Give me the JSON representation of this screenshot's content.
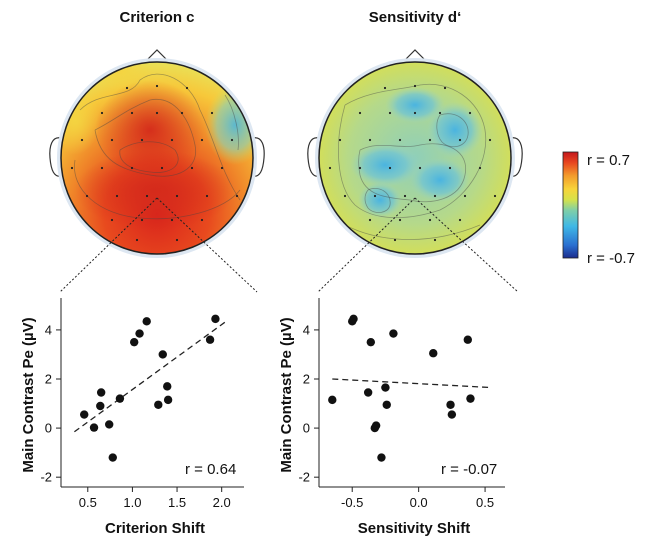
{
  "chart_data": [
    {
      "type": "heatmap",
      "title": "Criterion c",
      "description_values": "scalp topography of correlation r"
    },
    {
      "type": "heatmap",
      "title": "Sensitivity d‘"
    },
    {
      "type": "colorbar",
      "max_label": "r = 0.7",
      "min_label": "r = -0.7",
      "range": [
        -0.7,
        0.7
      ],
      "colors": [
        "#1c2d8e",
        "#2a6fd0",
        "#3fb8e6",
        "#7fcfa8",
        "#d6e24a",
        "#f7d43a",
        "#f39a2c",
        "#e8461f",
        "#c4161c"
      ]
    },
    {
      "type": "scatter",
      "xlabel": "Criterion Shift",
      "ylabel": "Main Contrast Pe (µV)",
      "xlim": [
        0.2,
        2.25
      ],
      "ylim": [
        -2.4,
        5.3
      ],
      "xticks": [
        0.5,
        1.0,
        1.5,
        2.0
      ],
      "xtick_labels": [
        "0.5",
        "1.0",
        "1.5",
        "2.0"
      ],
      "yticks": [
        -2,
        0,
        2,
        4
      ],
      "ytick_labels": [
        "-2",
        "0",
        "2",
        "4"
      ],
      "annotation": "r = 0.64",
      "points": [
        {
          "x": 0.46,
          "y": 0.55
        },
        {
          "x": 0.57,
          "y": 0.02
        },
        {
          "x": 0.64,
          "y": 0.9
        },
        {
          "x": 0.65,
          "y": 1.45
        },
        {
          "x": 0.74,
          "y": 0.15
        },
        {
          "x": 0.78,
          "y": -1.2
        },
        {
          "x": 0.86,
          "y": 1.2
        },
        {
          "x": 1.02,
          "y": 3.5
        },
        {
          "x": 1.08,
          "y": 3.85
        },
        {
          "x": 1.16,
          "y": 4.35
        },
        {
          "x": 1.29,
          "y": 0.95
        },
        {
          "x": 1.34,
          "y": 3.0
        },
        {
          "x": 1.39,
          "y": 1.7
        },
        {
          "x": 1.4,
          "y": 1.15
        },
        {
          "x": 1.87,
          "y": 3.6
        },
        {
          "x": 1.93,
          "y": 4.45
        }
      ],
      "fit": {
        "x": [
          0.35,
          2.05
        ],
        "y": [
          -0.15,
          4.35
        ]
      }
    },
    {
      "type": "scatter",
      "xlabel": "Sensitivity Shift",
      "ylabel": "Main Contrast Pe (µV)",
      "xlim": [
        -0.75,
        0.65
      ],
      "ylim": [
        -2.4,
        5.3
      ],
      "xticks": [
        -0.5,
        0.0,
        0.5
      ],
      "xtick_labels": [
        "-0.5",
        "0.0",
        "0.5"
      ],
      "yticks": [
        -2,
        0,
        2,
        4
      ],
      "ytick_labels": [
        "-2",
        "0",
        "2",
        "4"
      ],
      "annotation": "r = -0.07",
      "points": [
        {
          "x": -0.65,
          "y": 1.15
        },
        {
          "x": -0.5,
          "y": 4.35
        },
        {
          "x": -0.49,
          "y": 4.45
        },
        {
          "x": -0.38,
          "y": 1.45
        },
        {
          "x": -0.36,
          "y": 3.5
        },
        {
          "x": -0.33,
          "y": 0.0
        },
        {
          "x": -0.32,
          "y": 0.1
        },
        {
          "x": -0.28,
          "y": -1.2
        },
        {
          "x": -0.25,
          "y": 1.65
        },
        {
          "x": -0.24,
          "y": 0.95
        },
        {
          "x": -0.19,
          "y": 3.85
        },
        {
          "x": 0.11,
          "y": 3.05
        },
        {
          "x": 0.24,
          "y": 0.95
        },
        {
          "x": 0.25,
          "y": 0.55
        },
        {
          "x": 0.37,
          "y": 3.6
        },
        {
          "x": 0.39,
          "y": 1.2
        }
      ],
      "fit": {
        "x": [
          -0.65,
          0.55
        ],
        "y": [
          2.0,
          1.65
        ]
      }
    }
  ]
}
